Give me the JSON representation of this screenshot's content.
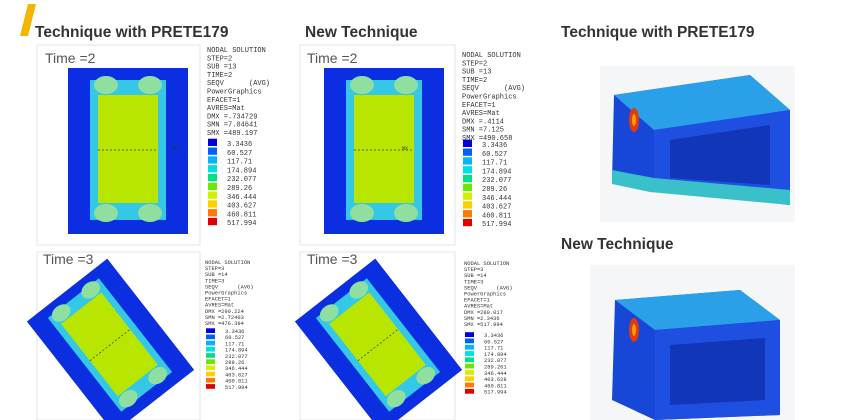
{
  "headings": {
    "left": "Technique with PRETE179",
    "middle": "New Technique",
    "right_top": "Technique with PRETE179",
    "right_bottom": "New Technique"
  },
  "panels": [
    {
      "time": "Time =2",
      "mx": "MX",
      "info": [
        "NODAL SOLUTION",
        "STEP=2",
        "SUB =13",
        "TIME=2",
        "SEQV      (AVG)",
        "PowerGraphics",
        "EFACET=1",
        "AVRES=Mat",
        "DMX =.734729",
        "SMN =7.04641",
        "SMX =489.197"
      ],
      "legend": [
        "3.3436",
        "60.527",
        "117.71",
        "174.894",
        "232.077",
        "289.26",
        "346.444",
        "403.627",
        "460.811",
        "517.994"
      ]
    },
    {
      "time": "Time =2",
      "mx": "MX",
      "info": [
        "NODAL SOLUTION",
        "STEP=2",
        "SUB =13",
        "TIME=2",
        "SEQV      (AVG)",
        "PowerGraphics",
        "EFACET=1",
        "AVRES=Mat",
        "DMX =.4114",
        "SMN =7.125",
        "SMX =490.658"
      ],
      "legend": [
        "3.3436",
        "60.527",
        "117.71",
        "174.894",
        "232.077",
        "289.26",
        "346.444",
        "403.627",
        "460.811",
        "517.994"
      ]
    },
    {
      "time": "Time =3",
      "info": [
        "NODAL SOLUTION",
        "STEP=3",
        "SUB =14",
        "TIME=3",
        "SEQV      (AVG)",
        "PowerGraphics",
        "EFACET=1",
        "AVRES=Mat",
        "DMX =290.224",
        "SMN =2.72403",
        "SMX =476.394"
      ],
      "legend": [
        "3.3436",
        "60.527",
        "117.71",
        "174.894",
        "232.077",
        "289.26",
        "346.444",
        "403.627",
        "460.811",
        "517.994"
      ]
    },
    {
      "time": "Time =3",
      "info": [
        "NODAL SOLUTION",
        "STEP=3",
        "SUB =14",
        "TIME=3",
        "SEQV      (AVG)",
        "PowerGraphics",
        "EFACET=1",
        "AVRES=Mat",
        "DMX =280.017",
        "SMN =2.3436",
        "SMX =517.994"
      ],
      "legend": [
        "3.3436",
        "60.527",
        "117.71",
        "174.894",
        "232.077",
        "289.261",
        "346.444",
        "403.628",
        "460.811",
        "517.994"
      ]
    }
  ]
}
